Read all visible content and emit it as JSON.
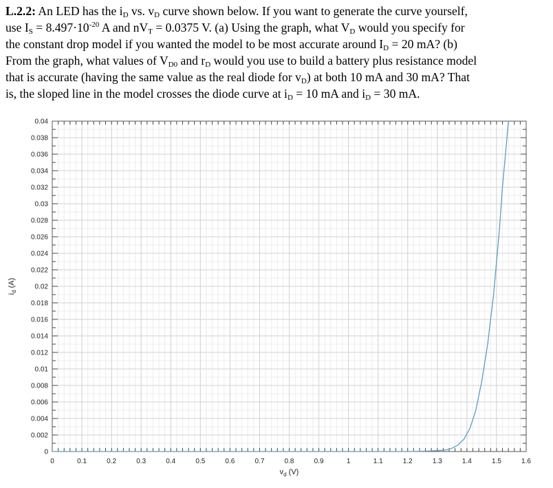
{
  "problem": {
    "label": "L.2.2:",
    "lines": [
      [
        {
          "t": "An LED has the i"
        },
        {
          "t": "D",
          "sub": true
        },
        {
          "t": " vs. v"
        },
        {
          "t": "D",
          "sub": true
        },
        {
          "t": " curve shown below. If you want to generate the curve yourself,"
        }
      ],
      [
        {
          "t": "use I"
        },
        {
          "t": "S",
          "sub": true
        },
        {
          "t": " = 8.497·10"
        },
        {
          "t": "-20",
          "sup": true
        },
        {
          "t": " A and nV"
        },
        {
          "t": "T",
          "sub": true
        },
        {
          "t": " = 0.0375 V. (a) Using the graph, what V"
        },
        {
          "t": "D",
          "sub": true
        },
        {
          "t": " would you specify for"
        }
      ],
      [
        {
          "t": "the constant drop model if you wanted the model to be most accurate around I"
        },
        {
          "t": "D",
          "sub": true
        },
        {
          "t": " = 20 mA? (b)"
        }
      ],
      [
        {
          "t": "From the graph, what values of V"
        },
        {
          "t": "D0",
          "sub": true
        },
        {
          "t": " and r"
        },
        {
          "t": "D",
          "sub": true
        },
        {
          "t": " would you use to build a battery plus resistance model"
        }
      ],
      [
        {
          "t": "that is accurate (having the same value as the real diode for v"
        },
        {
          "t": "D",
          "sub": true
        },
        {
          "t": ") at both 10 mA and 30 mA? That"
        }
      ],
      [
        {
          "t": "is, the sloped line in the model crosses the diode curve at i"
        },
        {
          "t": "D",
          "sub": true
        },
        {
          "t": " = 10 mA and i"
        },
        {
          "t": "D",
          "sub": true
        },
        {
          "t": " = 30 mA."
        }
      ]
    ]
  },
  "chart_data": {
    "type": "line",
    "xlabel": "v",
    "xlabel_sub": "d",
    "xlabel_unit": "(V)",
    "ylabel": "i",
    "ylabel_sub": "d",
    "ylabel_unit": "(A)",
    "xlim": [
      0,
      1.6
    ],
    "ylim": [
      0,
      0.04
    ],
    "x_ticks": [
      "0",
      "0.1",
      "0.2",
      "0.3",
      "0.4",
      "0.5",
      "0.6",
      "0.7",
      "0.8",
      "0.9",
      "1",
      "1.1",
      "1.2",
      "1.3",
      "1.4",
      "1.5",
      "1.6"
    ],
    "y_ticks": [
      "0",
      "0.002",
      "0.004",
      "0.006",
      "0.008",
      "0.01",
      "0.012",
      "0.014",
      "0.016",
      "0.018",
      "0.02",
      "0.022",
      "0.024",
      "0.026",
      "0.028",
      "0.03",
      "0.032",
      "0.034",
      "0.036",
      "0.038",
      "0.04"
    ],
    "grid": true,
    "minor_grid": true,
    "line_color": "#5b9cc0",
    "series": [
      {
        "x": [
          1.2,
          1.25,
          1.3,
          1.33,
          1.35,
          1.37,
          1.39,
          1.41,
          1.43,
          1.45,
          1.47,
          1.49,
          1.51,
          1.52,
          1.53,
          1.54
        ],
        "y": [
          0.0,
          3e-05,
          0.0001,
          0.0002,
          0.0004,
          0.0008,
          0.0015,
          0.0028,
          0.005,
          0.0085,
          0.013,
          0.019,
          0.027,
          0.032,
          0.036,
          0.04
        ]
      }
    ]
  }
}
